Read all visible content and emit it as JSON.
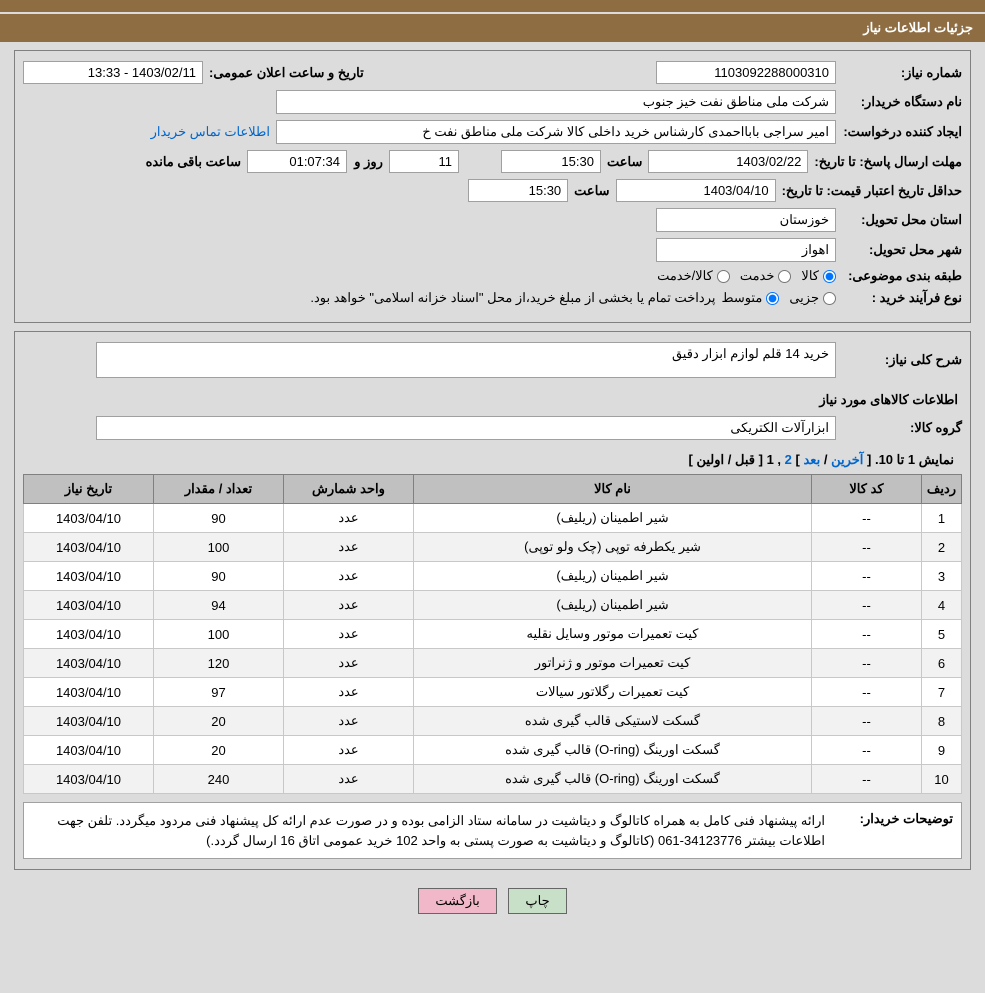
{
  "header": {
    "title": "جزئیات اطلاعات نیاز"
  },
  "info": {
    "need_number_label": "شماره نیاز:",
    "need_number": "1103092288000310",
    "announce_label": "تاریخ و ساعت اعلان عمومی:",
    "announce_value": "1403/02/11 - 13:33",
    "buyer_org_label": "نام دستگاه خریدار:",
    "buyer_org": "شرکت ملی مناطق نفت خیز جنوب",
    "requester_label": "ایجاد کننده درخواست:",
    "requester": "امیر سراجی بابااحمدی کارشناس خرید داخلی کالا شرکت ملی مناطق نفت خ",
    "contact_link": "اطلاعات تماس خریدار",
    "deadline_label": "مهلت ارسال پاسخ: تا تاریخ:",
    "deadline_date": "1403/02/22",
    "time_label": "ساعت",
    "deadline_time": "15:30",
    "days_label": "روز و",
    "days_value": "11",
    "countdown": "01:07:34",
    "remaining_label": "ساعت باقی مانده",
    "validity_label": "حداقل تاریخ اعتبار قیمت: تا تاریخ:",
    "validity_date": "1403/04/10",
    "validity_time": "15:30",
    "province_label": "استان محل تحویل:",
    "province": "خوزستان",
    "city_label": "شهر محل تحویل:",
    "city": "اهواز",
    "category_label": "طبقه بندی موضوعی:",
    "cat_goods": "کالا",
    "cat_service": "خدمت",
    "cat_both": "کالا/خدمت",
    "process_label": "نوع فرآیند خرید :",
    "proc_partial": "جزیی",
    "proc_medium": "متوسط",
    "process_note": "پرداخت تمام یا بخشی از مبلغ خرید،از محل \"اسناد خزانه اسلامی\" خواهد بود."
  },
  "need": {
    "desc_label": "شرح کلی نیاز:",
    "desc": "خرید 14 قلم لوازم ابزار دقیق",
    "items_header": "اطلاعات کالاهای مورد نیاز",
    "group_label": "گروه کالا:",
    "group": "ابزارآلات الکتریکی"
  },
  "pager": {
    "prefix": "نمایش 1 تا 10. [ ",
    "last": "آخرین",
    "next": "بعد",
    "sep": " / ",
    "close": "] ",
    "p2": "2",
    "comma": " ,",
    "p1": "1",
    "open": " [",
    "prev": "قبل",
    "first": "اولین",
    "close2": "]"
  },
  "table": {
    "headers": {
      "idx": "ردیف",
      "code": "کد کالا",
      "name": "نام کالا",
      "unit": "واحد شمارش",
      "qty": "تعداد / مقدار",
      "date": "تاریخ نیاز"
    },
    "rows": [
      {
        "idx": "1",
        "code": "--",
        "name": "شیر اطمینان (ریلیف)",
        "unit": "عدد",
        "qty": "90",
        "date": "1403/04/10"
      },
      {
        "idx": "2",
        "code": "--",
        "name": "شیر یکطرفه توپی (چک ولو توپی)",
        "unit": "عدد",
        "qty": "100",
        "date": "1403/04/10"
      },
      {
        "idx": "3",
        "code": "--",
        "name": "شیر اطمینان (ریلیف)",
        "unit": "عدد",
        "qty": "90",
        "date": "1403/04/10"
      },
      {
        "idx": "4",
        "code": "--",
        "name": "شیر اطمینان (ریلیف)",
        "unit": "عدد",
        "qty": "94",
        "date": "1403/04/10"
      },
      {
        "idx": "5",
        "code": "--",
        "name": "کیت تعمیرات موتور وسایل نقلیه",
        "unit": "عدد",
        "qty": "100",
        "date": "1403/04/10"
      },
      {
        "idx": "6",
        "code": "--",
        "name": "کیت تعمیرات موتور و ژنراتور",
        "unit": "عدد",
        "qty": "120",
        "date": "1403/04/10"
      },
      {
        "idx": "7",
        "code": "--",
        "name": "کیت تعمیرات رگلاتور سیالات",
        "unit": "عدد",
        "qty": "97",
        "date": "1403/04/10"
      },
      {
        "idx": "8",
        "code": "--",
        "name": "گسکت لاستیکی قالب گیری شده",
        "unit": "عدد",
        "qty": "20",
        "date": "1403/04/10"
      },
      {
        "idx": "9",
        "code": "--",
        "name": "گسکت اورینگ (O-ring) قالب گیری شده",
        "unit": "عدد",
        "qty": "20",
        "date": "1403/04/10"
      },
      {
        "idx": "10",
        "code": "--",
        "name": "گسکت اورینگ (O-ring) قالب گیری شده",
        "unit": "عدد",
        "qty": "240",
        "date": "1403/04/10"
      }
    ]
  },
  "note": {
    "label": "توضیحات خریدار:",
    "text": "ارائه پیشنهاد فنی کامل به همراه کاتالوگ و دیتاشیت در سامانه ستاد الزامی بوده و در صورت عدم ارائه کل پیشنهاد فنی مردود میگردد. تلفن جهت اطلاعات بیشتر 34123776-061 (کاتالوگ و دیتاشیت به صورت پستی به واحد 102 خرید عمومی اتاق 16 ارسال گردد.)"
  },
  "buttons": {
    "print": "چاپ",
    "back": "بازگشت"
  }
}
